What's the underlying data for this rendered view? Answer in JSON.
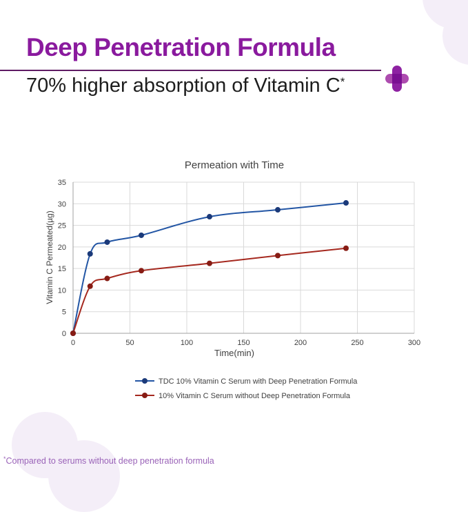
{
  "header": {
    "title": "Deep Penetration Formula",
    "subtitle_text": "70% higher absorption of Vitamin C",
    "subtitle_star": "*"
  },
  "footnote": {
    "star": "*",
    "text": "Compared to serums without deep penetration formula"
  },
  "icons": {
    "plus_icon": "plus"
  },
  "colors": {
    "title_purple": "#8a1a9e",
    "divider_purple": "#5e1a63",
    "subtitle_text": "#1d1d1d",
    "footnote_purple": "#9a63b8",
    "decor_lavender": "#f4eef8",
    "plus_light": "#ad4caf",
    "plus_dark": "#8e22a2",
    "plus_center": "#7a1092",
    "gridline": "#d9d9d9",
    "axis_line": "#a0a0a0",
    "chart_text": "#404040",
    "legend_text": "#3f3f3f"
  },
  "chart_data": {
    "type": "line",
    "title": "Permeation with Time",
    "xlabel": "Time(min)",
    "ylabel": "Vitamin C Permeated(µg)",
    "xlim": [
      0,
      300
    ],
    "ylim": [
      0,
      35
    ],
    "xticks": [
      0,
      50,
      100,
      150,
      200,
      250,
      300
    ],
    "yticks": [
      0,
      5,
      10,
      15,
      20,
      25,
      30,
      35
    ],
    "grid": true,
    "legend_position": "bottom",
    "x": [
      0,
      15,
      30,
      60,
      120,
      180,
      240
    ],
    "series": [
      {
        "name": "TDC 10% Vitamin C Serum with Deep Penetration Formula",
        "color": "#2255a4",
        "marker_color": "#1b3a7a",
        "values": [
          0,
          18.4,
          21.1,
          22.7,
          27,
          28.6,
          30.2
        ]
      },
      {
        "name": "10% Vitamin C Serum without Deep Penetration Formula",
        "color": "#a5281e",
        "marker_color": "#871c14",
        "values": [
          0,
          10.9,
          12.7,
          14.5,
          16.2,
          18,
          19.7
        ]
      }
    ]
  }
}
